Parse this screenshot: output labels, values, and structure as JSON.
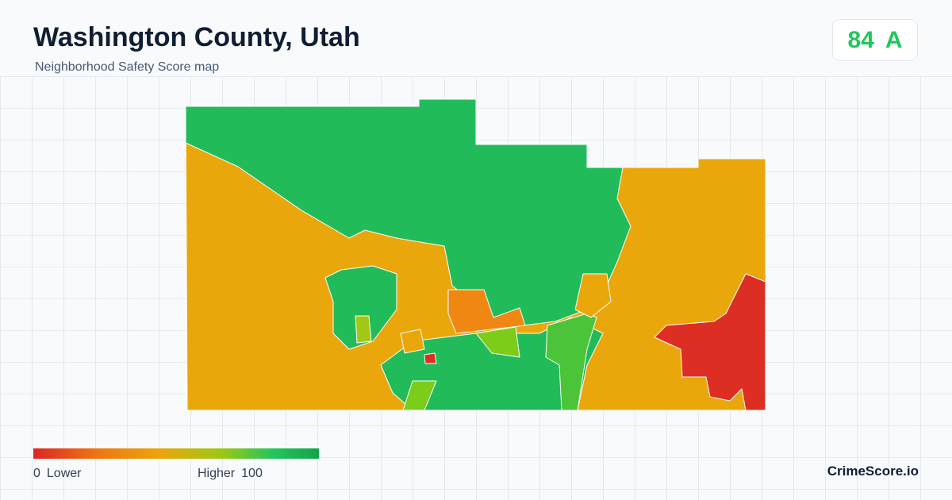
{
  "header": {
    "title": "Washington County, Utah",
    "subtitle": "Neighborhood Safety Score map"
  },
  "score": {
    "value": 84,
    "grade": "A"
  },
  "legend": {
    "min": 0,
    "min_label": "Lower",
    "max_label": "Higher",
    "max": 100
  },
  "brand": "CrimeScore.io"
}
